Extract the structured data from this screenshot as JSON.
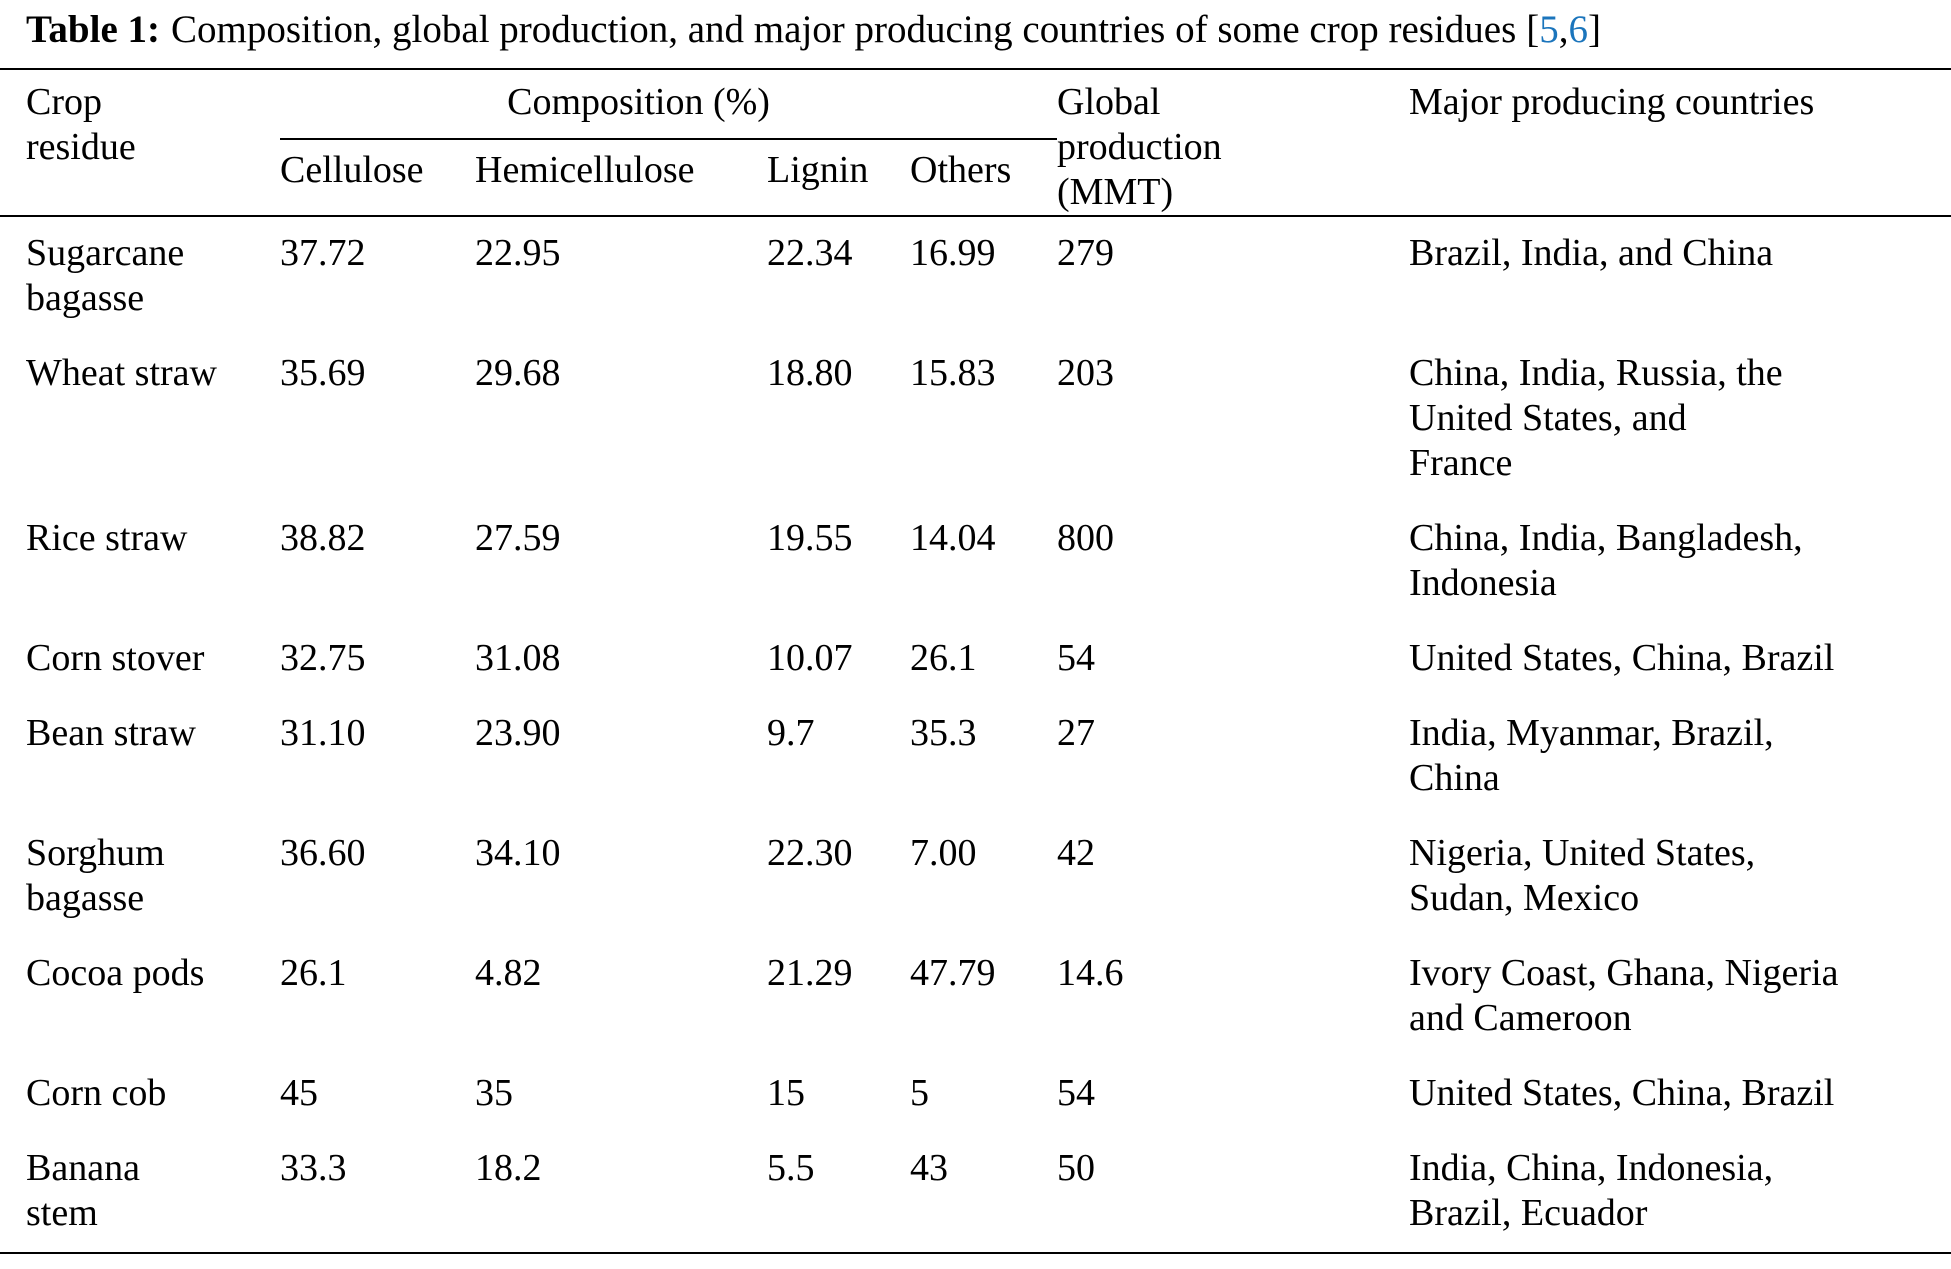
{
  "caption": {
    "label": "Table 1:",
    "text": "Composition, global production, and major producing countries of some crop residues",
    "citation_open": "[",
    "citation_ref_1": "5",
    "citation_comma": ",",
    "citation_ref_2": "6",
    "citation_close": "]"
  },
  "colors": {
    "citation": "#1b75bc",
    "text": "#000000",
    "rule": "#000000"
  },
  "header": {
    "crop_residue": [
      "Crop",
      "residue"
    ],
    "composition": "Composition (%)",
    "subcolumns": [
      "Cellulose",
      "Hemicellulose",
      "Lignin",
      "Others"
    ],
    "global_production": [
      "Global",
      "production",
      "(MMT)"
    ],
    "countries": "Major producing countries"
  },
  "rows": [
    {
      "crop": [
        "Sugarcane",
        "bagasse"
      ],
      "cellulose": "37.72",
      "hemicellulose": "22.95",
      "lignin": "22.34",
      "others": "16.99",
      "production": "279",
      "countries": [
        "Brazil, India, and China"
      ]
    },
    {
      "crop": "Wheat straw",
      "cellulose": "35.69",
      "hemicellulose": "29.68",
      "lignin": "18.80",
      "others": "15.83",
      "production": "203",
      "countries": [
        "China, India, Russia, the",
        "United States, and",
        "France"
      ]
    },
    {
      "crop": "Rice straw",
      "cellulose": "38.82",
      "hemicellulose": "27.59",
      "lignin": "19.55",
      "others": "14.04",
      "production": "800",
      "countries": [
        "China, India, Bangladesh,",
        "Indonesia"
      ]
    },
    {
      "crop": "Corn stover",
      "cellulose": "32.75",
      "hemicellulose": "31.08",
      "lignin": "10.07",
      "others": "26.1",
      "production": "54",
      "countries": [
        "United States, China, Brazil"
      ]
    },
    {
      "crop": "Bean straw",
      "cellulose": "31.10",
      "hemicellulose": "23.90",
      "lignin": "9.7",
      "others": "35.3",
      "production": "27",
      "countries": [
        "India, Myanmar, Brazil,",
        "China"
      ]
    },
    {
      "crop": [
        "Sorghum",
        "bagasse"
      ],
      "cellulose": "36.60",
      "hemicellulose": "34.10",
      "lignin": "22.30",
      "others": "7.00",
      "production": "42",
      "countries": [
        "Nigeria, United States,",
        "Sudan, Mexico"
      ]
    },
    {
      "crop": "Cocoa pods",
      "cellulose": "26.1",
      "hemicellulose": "4.82",
      "lignin": "21.29",
      "others": "47.79",
      "production": "14.6",
      "countries": [
        "Ivory Coast, Ghana, Nigeria",
        "and Cameroon"
      ]
    },
    {
      "crop": "Corn cob",
      "cellulose": "45",
      "hemicellulose": "35",
      "lignin": "15",
      "others": "5",
      "production": "54",
      "countries": [
        "United States, China, Brazil"
      ]
    },
    {
      "crop": [
        "Banana",
        "stem"
      ],
      "cellulose": "33.3",
      "hemicellulose": "18.2",
      "lignin": "5.5",
      "others": "43",
      "production": "50",
      "countries": [
        "India, China, Indonesia,",
        "Brazil, Ecuador"
      ]
    }
  ]
}
